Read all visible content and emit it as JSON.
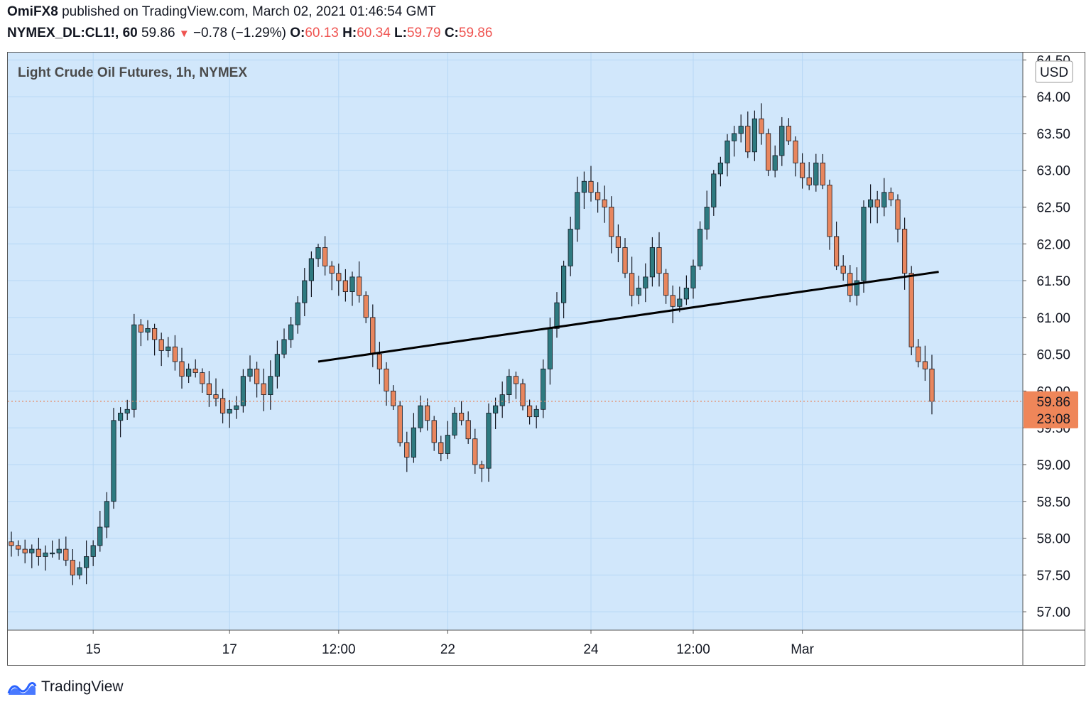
{
  "header": {
    "author": "OmiFX8",
    "published_text": "published on TradingView.com, March 02, 2021 01:46:54 GMT",
    "symbol": "NYMEX_DL:CL1!, 60",
    "last": "59.86",
    "change_arrow": "▼",
    "change": "−0.78 (−1.29%)",
    "o_label": "O:",
    "o_value": "60.13",
    "h_label": "H:",
    "h_value": "60.34",
    "l_label": "L:",
    "l_value": "59.79",
    "c_label": "C:",
    "c_value": "59.86"
  },
  "footer": {
    "brand": "TradingView"
  },
  "colors": {
    "background": "#d1e7fb",
    "grid": "#b6d7f5",
    "up": "#2e7a80",
    "down": "#e8865e",
    "wick": "#131722",
    "price_tag": "#ef8659",
    "trendline": "#000000"
  },
  "chart_data": {
    "type": "candlestick",
    "title": "Light Crude Oil Futures, 1h, NYMEX",
    "currency": "USD",
    "y_range": [
      56.75,
      64.6
    ],
    "y_ticks": [
      "57.00",
      "57.50",
      "58.00",
      "58.50",
      "59.00",
      "59.50",
      "60.00",
      "60.50",
      "61.00",
      "61.50",
      "62.00",
      "62.50",
      "63.00",
      "63.50",
      "64.00",
      "64.50"
    ],
    "x_ticks": [
      "15",
      "17",
      "12:00",
      "22",
      "24",
      "12:00",
      "Mar"
    ],
    "x_tick_bar_index": [
      12,
      32,
      48,
      64,
      85,
      100,
      116
    ],
    "bar_count": 136,
    "grid": true,
    "last_price": {
      "value": 59.86,
      "label": "59.86",
      "countdown": "23:08"
    },
    "trendline": {
      "from": {
        "bar": 45,
        "price": 60.4
      },
      "to": {
        "bar": 136,
        "price": 61.62
      }
    },
    "close": [
      57.9,
      57.85,
      57.8,
      57.85,
      57.75,
      57.8,
      57.8,
      57.85,
      57.7,
      57.5,
      57.6,
      57.75,
      57.9,
      58.15,
      58.5,
      59.6,
      59.7,
      59.75,
      60.9,
      60.8,
      60.85,
      60.7,
      60.55,
      60.6,
      60.4,
      60.2,
      60.3,
      60.25,
      60.1,
      59.95,
      59.9,
      59.7,
      59.75,
      59.8,
      60.2,
      60.3,
      60.1,
      59.95,
      60.2,
      60.5,
      60.7,
      60.9,
      61.2,
      61.5,
      61.8,
      61.95,
      61.7,
      61.6,
      61.5,
      61.35,
      61.55,
      61.3,
      61.0,
      60.5,
      60.3,
      60.0,
      59.8,
      59.3,
      59.1,
      59.5,
      59.8,
      59.6,
      59.3,
      59.15,
      59.4,
      59.7,
      59.6,
      59.35,
      59.0,
      58.95,
      59.7,
      59.8,
      59.95,
      60.2,
      60.1,
      59.8,
      59.65,
      59.75,
      60.3,
      60.85,
      61.2,
      61.7,
      62.2,
      62.7,
      62.85,
      62.7,
      62.6,
      62.5,
      62.1,
      61.95,
      61.6,
      61.3,
      61.4,
      61.55,
      61.95,
      61.6,
      61.3,
      61.15,
      61.25,
      61.4,
      61.7,
      62.2,
      62.5,
      62.95,
      63.1,
      63.4,
      63.5,
      63.6,
      63.25,
      63.7,
      63.5,
      63.0,
      63.2,
      63.6,
      63.4,
      63.1,
      62.9,
      62.8,
      63.1,
      62.8,
      62.1,
      61.7,
      61.6,
      61.3,
      61.5,
      62.5,
      62.6,
      62.5,
      62.7,
      62.6,
      62.2,
      61.6,
      60.6,
      60.4,
      60.3,
      59.86
    ]
  }
}
